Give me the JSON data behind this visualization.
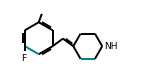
{
  "background_color": "#ffffff",
  "line_color": "#000000",
  "teal_color": "#008080",
  "f_label": "F",
  "nh_label": "NH",
  "line_width": 1.4,
  "figsize": [
    1.46,
    0.78
  ],
  "dpi": 100,
  "xlim": [
    0,
    9.5
  ],
  "ylim": [
    0.5,
    5.2
  ]
}
